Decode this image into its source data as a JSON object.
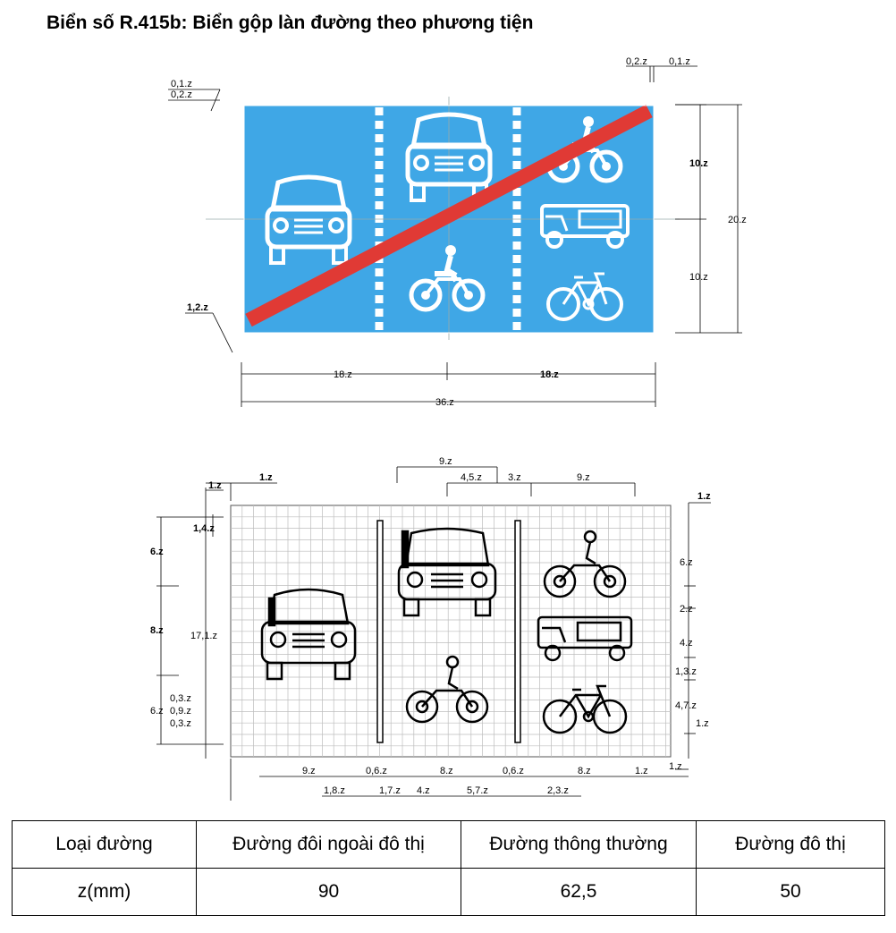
{
  "title": "Biển số R.415b: Biển gộp làn đường theo phương tiện",
  "colors": {
    "sign_blue": "#3fa7e6",
    "red_bar": "#e03a35",
    "white": "#ffffff",
    "grid": "#bdbdbd"
  },
  "icons": [
    "car-front-icon",
    "truck-front-icon",
    "motorcycle-icon",
    "three-wheeler-icon",
    "bicycle-icon"
  ],
  "top_diagram": {
    "dims": {
      "d01z": "0,1.z",
      "d02z": "0,2.z",
      "d02z_r": "0,2.z",
      "d01z_r": "0,1.z",
      "d12z": "1,2.z",
      "d10z_top": "10.z",
      "d10z_bottom": "10.z",
      "d20z": "20.z",
      "d18z_left": "18.z",
      "d18z_right": "18.z",
      "d36z": "36.z"
    }
  },
  "bottom_diagram": {
    "dims": {
      "t9z": "9.z",
      "t45z": "4,5.z",
      "t3z": "3.z",
      "t9z_b": "9.z",
      "t1z_a": "1.z",
      "t1z_b": "1.z",
      "t1z_c": "1.z",
      "l14z": "1,4.z",
      "l6z": "6.z",
      "l8z": "8.z",
      "l171z": "17,1.z",
      "l03z_a": "0,3.z",
      "l6z_b": "6.z",
      "l09z": "0,9.z",
      "l03z_b": "0,3.z",
      "r6z": "6.z",
      "r2z": "2.z",
      "r4z": "4.z",
      "r13z": "1,3.z",
      "r47z": "4,7.z",
      "r1z": "1.z",
      "r1z_b": "1.z",
      "b9z": "9.z",
      "b06z_a": "0,6.z",
      "b8z_a": "8.z",
      "b06z_b": "0,6.z",
      "b8z_b": "8.z",
      "b1z": "1.z",
      "c18z": "1,8.z",
      "c17z": "1,7.z",
      "c4z": "4.z",
      "c57z": "5,7.z",
      "c23z": "2,3.z"
    }
  },
  "table": {
    "headers": [
      "Loại đường",
      "Đường đôi ngoài đô thị",
      "Đường thông thường",
      "Đường đô thị"
    ],
    "row": [
      "z(mm)",
      "90",
      "62,5",
      "50"
    ]
  }
}
